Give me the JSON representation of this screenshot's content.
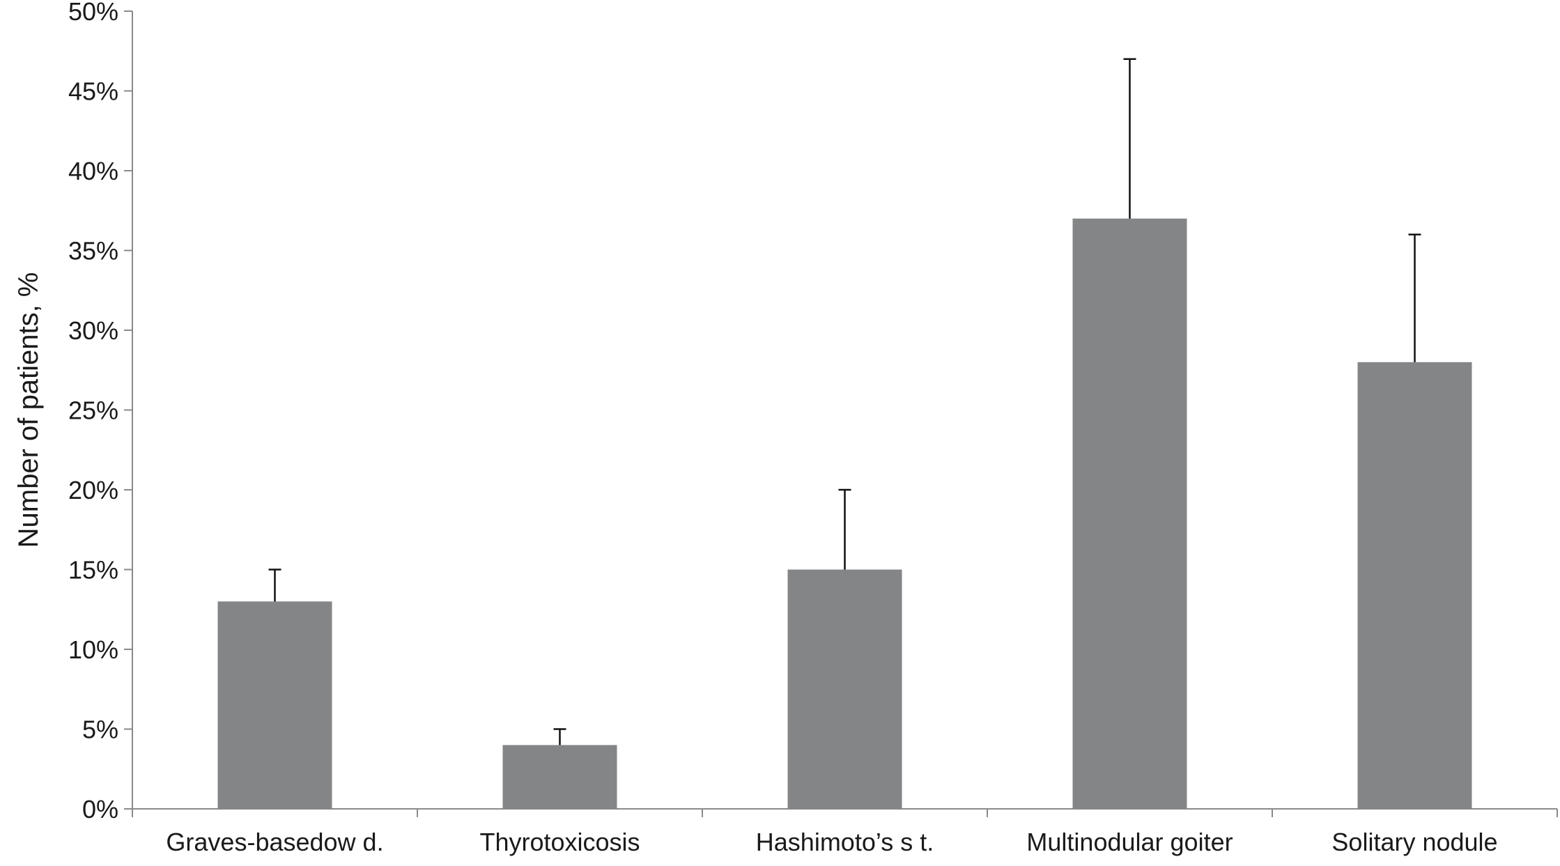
{
  "chart_data": {
    "type": "bar",
    "title": "",
    "xlabel": "",
    "ylabel": "Number of patients, %",
    "categories": [
      "Graves-basedow d.",
      "Thyrotoxicosis",
      "Hashimoto’s s t.",
      "Multinodular goiter",
      "Solitary nodule"
    ],
    "values": [
      13,
      4,
      15,
      37,
      28
    ],
    "error_upper": [
      15,
      5,
      20,
      47,
      36
    ],
    "ylim": [
      0,
      50
    ],
    "yticks": [
      0,
      5,
      10,
      15,
      20,
      25,
      30,
      35,
      40,
      45,
      50
    ],
    "ytick_labels": [
      "0%",
      "5%",
      "10%",
      "15%",
      "20%",
      "25%",
      "30%",
      "35%",
      "40%",
      "45%",
      "50%"
    ],
    "grid": false,
    "legend": "none",
    "bar_color": "#848587"
  }
}
